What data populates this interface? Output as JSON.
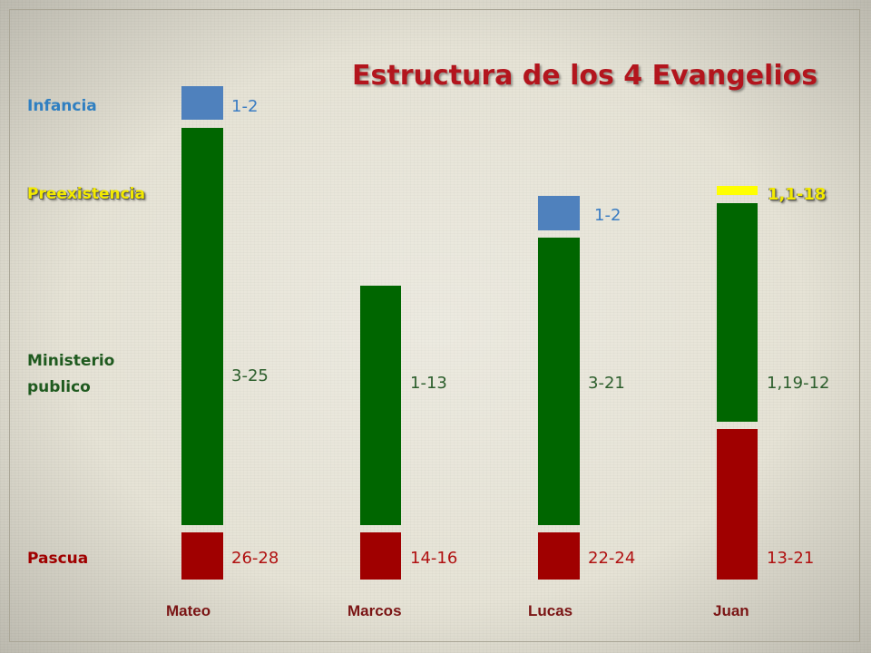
{
  "title": "Estructura de los 4 Evangelios",
  "categories": {
    "infancia": "Infancia",
    "preexistencia": "Preexistencia",
    "ministerio": "Ministerio publico",
    "pascua": "Pascua"
  },
  "colors": {
    "infancia": "#4f81bd",
    "preexistencia": "#ffff00",
    "ministerio": "#006600",
    "pascua": "#a00000"
  },
  "gospels": [
    {
      "name": "Mateo",
      "infancia": "1-2",
      "ministerio": "3-25",
      "pascua": "26-28"
    },
    {
      "name": "Marcos",
      "ministerio": "1-13",
      "pascua": "14-16"
    },
    {
      "name": "Lucas",
      "infancia": "1-2",
      "ministerio": "3-21",
      "pascua": "22-24"
    },
    {
      "name": "Juan",
      "preexistencia": "1,1-18",
      "ministerio": "1,19-12",
      "pascua": "13-21"
    }
  ]
}
